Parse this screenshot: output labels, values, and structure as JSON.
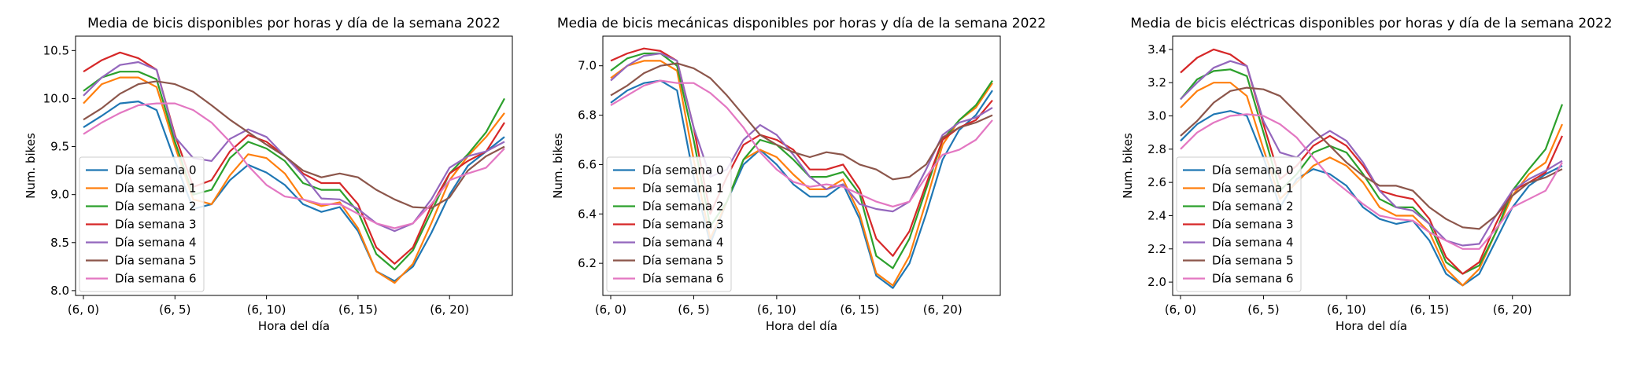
{
  "chart_data": [
    {
      "type": "line",
      "title": "Media de bicis disponibles por horas y día de la semana 2022",
      "xlabel": "Hora del día",
      "ylabel": "Num. bikes",
      "x": [
        0,
        1,
        2,
        3,
        4,
        5,
        6,
        7,
        8,
        9,
        10,
        11,
        12,
        13,
        14,
        15,
        16,
        17,
        18,
        19,
        20,
        21,
        22,
        23
      ],
      "xticks": [
        0,
        5,
        10,
        15,
        20
      ],
      "xtick_labels": [
        "(6, 0)",
        "(6, 5)",
        "(6, 10)",
        "(6, 15)",
        "(6, 20)"
      ],
      "ylim": [
        7.95,
        10.65
      ],
      "yticks": [
        8.0,
        8.5,
        9.0,
        9.5,
        10.0,
        10.5
      ],
      "ytick_labels": [
        "8.0",
        "8.5",
        "9.0",
        "9.5",
        "10.0",
        "10.5"
      ],
      "legend": "lower-left",
      "series": [
        {
          "name": "Día semana 0",
          "values": [
            9.7,
            9.82,
            9.95,
            9.97,
            9.88,
            9.35,
            8.85,
            8.9,
            9.15,
            9.31,
            9.23,
            9.1,
            8.9,
            8.82,
            8.87,
            8.62,
            8.2,
            8.1,
            8.25,
            8.6,
            9.0,
            9.3,
            9.45,
            9.6
          ]
        },
        {
          "name": "Día semana 1",
          "values": [
            9.95,
            10.15,
            10.22,
            10.22,
            10.12,
            9.5,
            8.95,
            8.9,
            9.2,
            9.42,
            9.38,
            9.22,
            8.95,
            8.88,
            8.92,
            8.65,
            8.2,
            8.08,
            8.28,
            8.7,
            9.15,
            9.4,
            9.6,
            9.85
          ]
        },
        {
          "name": "Día semana 2",
          "values": [
            10.08,
            10.22,
            10.28,
            10.28,
            10.2,
            9.55,
            9.0,
            9.05,
            9.38,
            9.55,
            9.48,
            9.35,
            9.12,
            9.05,
            9.05,
            8.82,
            8.38,
            8.22,
            8.42,
            8.82,
            9.22,
            9.42,
            9.65,
            10.0
          ]
        },
        {
          "name": "Día semana 3",
          "values": [
            10.28,
            10.4,
            10.48,
            10.42,
            10.3,
            9.62,
            9.08,
            9.15,
            9.45,
            9.62,
            9.55,
            9.4,
            9.22,
            9.12,
            9.12,
            8.9,
            8.45,
            8.28,
            8.45,
            8.88,
            9.22,
            9.35,
            9.45,
            9.75
          ]
        },
        {
          "name": "Día semana 4",
          "values": [
            10.03,
            10.22,
            10.35,
            10.38,
            10.3,
            9.6,
            9.38,
            9.35,
            9.58,
            9.68,
            9.6,
            9.4,
            9.2,
            8.96,
            8.95,
            8.85,
            8.7,
            8.62,
            8.7,
            8.95,
            9.28,
            9.4,
            9.45,
            9.55
          ]
        },
        {
          "name": "Día semana 5",
          "values": [
            9.78,
            9.9,
            10.05,
            10.15,
            10.18,
            10.15,
            10.07,
            9.93,
            9.78,
            9.65,
            9.52,
            9.4,
            9.25,
            9.18,
            9.22,
            9.18,
            9.05,
            8.95,
            8.87,
            8.86,
            8.97,
            9.25,
            9.4,
            9.5
          ]
        },
        {
          "name": "Día semana 6",
          "values": [
            9.63,
            9.75,
            9.85,
            9.93,
            9.95,
            9.95,
            9.88,
            9.75,
            9.55,
            9.3,
            9.1,
            8.98,
            8.95,
            8.9,
            8.9,
            8.8,
            8.7,
            8.65,
            8.7,
            8.9,
            9.15,
            9.22,
            9.28,
            9.48
          ]
        }
      ]
    },
    {
      "type": "line",
      "title": "Media de bicis mecánicas disponibles por horas y día de la semana 2022",
      "xlabel": "Hora del día",
      "ylabel": "Num. bikes",
      "x": [
        0,
        1,
        2,
        3,
        4,
        5,
        6,
        7,
        8,
        9,
        10,
        11,
        12,
        13,
        14,
        15,
        16,
        17,
        18,
        19,
        20,
        21,
        22,
        23
      ],
      "xticks": [
        0,
        5,
        10,
        15,
        20
      ],
      "xtick_labels": [
        "(6, 0)",
        "(6, 5)",
        "(6, 10)",
        "(6, 15)",
        "(6, 20)"
      ],
      "ylim": [
        6.07,
        7.12
      ],
      "yticks": [
        6.2,
        6.4,
        6.6,
        6.8,
        7.0
      ],
      "ytick_labels": [
        "6.2",
        "6.4",
        "6.6",
        "6.8",
        "7.0"
      ],
      "legend": "lower-left",
      "series": [
        {
          "name": "Día semana 0",
          "values": [
            6.85,
            6.9,
            6.93,
            6.94,
            6.9,
            6.55,
            6.28,
            6.45,
            6.6,
            6.66,
            6.6,
            6.52,
            6.47,
            6.47,
            6.52,
            6.38,
            6.15,
            6.1,
            6.2,
            6.4,
            6.62,
            6.74,
            6.8,
            6.9
          ]
        },
        {
          "name": "Día semana 1",
          "values": [
            6.95,
            7.0,
            7.02,
            7.02,
            6.98,
            6.62,
            6.3,
            6.45,
            6.62,
            6.66,
            6.63,
            6.56,
            6.5,
            6.5,
            6.54,
            6.4,
            6.16,
            6.11,
            6.23,
            6.45,
            6.68,
            6.78,
            6.83,
            6.93
          ]
        },
        {
          "name": "Día semana 2",
          "values": [
            6.98,
            7.03,
            7.05,
            7.05,
            7.0,
            6.7,
            6.35,
            6.45,
            6.62,
            6.7,
            6.68,
            6.62,
            6.55,
            6.55,
            6.57,
            6.48,
            6.23,
            6.18,
            6.3,
            6.5,
            6.7,
            6.78,
            6.84,
            6.94
          ]
        },
        {
          "name": "Día semana 3",
          "values": [
            7.02,
            7.05,
            7.07,
            7.06,
            7.02,
            6.75,
            6.4,
            6.55,
            6.68,
            6.72,
            6.7,
            6.66,
            6.58,
            6.58,
            6.6,
            6.5,
            6.3,
            6.23,
            6.33,
            6.52,
            6.7,
            6.75,
            6.78,
            6.86
          ]
        },
        {
          "name": "Día semana 4",
          "values": [
            6.94,
            7.0,
            7.04,
            7.05,
            7.02,
            6.75,
            6.55,
            6.58,
            6.7,
            6.76,
            6.72,
            6.64,
            6.55,
            6.5,
            6.52,
            6.44,
            6.42,
            6.41,
            6.45,
            6.58,
            6.72,
            6.77,
            6.79,
            6.83
          ]
        },
        {
          "name": "Día semana 5",
          "values": [
            6.88,
            6.92,
            6.97,
            7.0,
            7.01,
            6.99,
            6.95,
            6.88,
            6.8,
            6.72,
            6.68,
            6.65,
            6.63,
            6.65,
            6.64,
            6.6,
            6.58,
            6.54,
            6.55,
            6.6,
            6.71,
            6.75,
            6.77,
            6.8
          ]
        },
        {
          "name": "Día semana 6",
          "values": [
            6.84,
            6.88,
            6.92,
            6.94,
            6.93,
            6.93,
            6.89,
            6.83,
            6.75,
            6.65,
            6.58,
            6.53,
            6.51,
            6.52,
            6.51,
            6.48,
            6.45,
            6.43,
            6.45,
            6.55,
            6.64,
            6.66,
            6.7,
            6.78
          ]
        }
      ]
    },
    {
      "type": "line",
      "title": "Media de bicis eléctricas disponibles por horas y día de la semana 2022",
      "xlabel": "Hora del día",
      "ylabel": "Num. bikes",
      "x": [
        0,
        1,
        2,
        3,
        4,
        5,
        6,
        7,
        8,
        9,
        10,
        11,
        12,
        13,
        14,
        15,
        16,
        17,
        18,
        19,
        20,
        21,
        22,
        23
      ],
      "xticks": [
        0,
        5,
        10,
        15,
        20
      ],
      "xtick_labels": [
        "(6, 0)",
        "(6, 5)",
        "(6, 10)",
        "(6, 15)",
        "(6, 20)"
      ],
      "ylim": [
        1.92,
        3.48
      ],
      "yticks": [
        2.0,
        2.2,
        2.4,
        2.6,
        2.8,
        3.0,
        3.2,
        3.4
      ],
      "ytick_labels": [
        "2.0",
        "2.2",
        "2.4",
        "2.6",
        "2.8",
        "3.0",
        "3.2",
        "3.4"
      ],
      "legend": "lower-left",
      "series": [
        {
          "name": "Día semana 0",
          "values": [
            2.85,
            2.95,
            3.01,
            3.03,
            3.0,
            2.75,
            2.45,
            2.62,
            2.68,
            2.65,
            2.58,
            2.45,
            2.38,
            2.35,
            2.37,
            2.25,
            2.05,
            1.98,
            2.05,
            2.25,
            2.45,
            2.58,
            2.65,
            2.7
          ]
        },
        {
          "name": "Día semana 1",
          "values": [
            3.05,
            3.15,
            3.2,
            3.2,
            3.12,
            2.8,
            2.5,
            2.6,
            2.7,
            2.75,
            2.7,
            2.6,
            2.45,
            2.4,
            2.4,
            2.3,
            2.08,
            1.98,
            2.08,
            2.3,
            2.52,
            2.65,
            2.72,
            2.95
          ]
        },
        {
          "name": "Día semana 2",
          "values": [
            3.1,
            3.22,
            3.27,
            3.28,
            3.24,
            2.9,
            2.55,
            2.65,
            2.78,
            2.82,
            2.78,
            2.65,
            2.5,
            2.45,
            2.45,
            2.35,
            2.12,
            2.05,
            2.1,
            2.3,
            2.55,
            2.68,
            2.8,
            3.07
          ]
        },
        {
          "name": "Día semana 3",
          "values": [
            3.26,
            3.35,
            3.4,
            3.37,
            3.3,
            2.95,
            2.62,
            2.7,
            2.82,
            2.88,
            2.82,
            2.7,
            2.55,
            2.52,
            2.5,
            2.38,
            2.15,
            2.05,
            2.12,
            2.35,
            2.55,
            2.6,
            2.66,
            2.88
          ]
        },
        {
          "name": "Día semana 4",
          "values": [
            3.1,
            3.2,
            3.29,
            3.33,
            3.3,
            2.97,
            2.78,
            2.75,
            2.85,
            2.91,
            2.85,
            2.72,
            2.55,
            2.45,
            2.43,
            2.35,
            2.25,
            2.22,
            2.23,
            2.4,
            2.55,
            2.62,
            2.67,
            2.73
          ]
        },
        {
          "name": "Día semana 5",
          "values": [
            2.88,
            2.97,
            3.08,
            3.15,
            3.17,
            3.16,
            3.12,
            3.02,
            2.92,
            2.82,
            2.72,
            2.64,
            2.58,
            2.58,
            2.55,
            2.45,
            2.38,
            2.33,
            2.32,
            2.4,
            2.52,
            2.6,
            2.63,
            2.68
          ]
        },
        {
          "name": "Día semana 6",
          "values": [
            2.8,
            2.9,
            2.96,
            3.0,
            3.01,
            3.0,
            2.95,
            2.87,
            2.75,
            2.63,
            2.55,
            2.47,
            2.4,
            2.38,
            2.37,
            2.3,
            2.25,
            2.2,
            2.2,
            2.32,
            2.45,
            2.5,
            2.55,
            2.72
          ]
        }
      ]
    }
  ],
  "colors": [
    "#1f77b4",
    "#ff7f0e",
    "#2ca02c",
    "#d62728",
    "#9467bd",
    "#8c564b",
    "#e377c2"
  ]
}
